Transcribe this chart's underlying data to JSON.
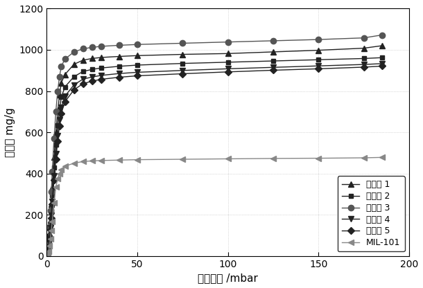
{
  "title": "",
  "xlabel": "吸附压力 /mbar",
  "ylabel": "吸附量 mg/g",
  "xlim": [
    0,
    200
  ],
  "ylim": [
    0,
    1200
  ],
  "xticks": [
    0,
    50,
    100,
    150,
    200
  ],
  "yticks": [
    0,
    200,
    400,
    600,
    800,
    1000,
    1200
  ],
  "series": [
    {
      "label": "实施例 1",
      "marker": "^",
      "color": "#222222",
      "x": [
        0,
        0.5,
        1,
        1.5,
        2,
        2.5,
        3,
        4,
        5,
        6,
        7,
        8,
        10,
        15,
        20,
        25,
        30,
        40,
        50,
        75,
        100,
        125,
        150,
        175,
        185
      ],
      "y": [
        0,
        20,
        55,
        110,
        175,
        250,
        330,
        480,
        600,
        700,
        780,
        840,
        880,
        930,
        950,
        958,
        963,
        968,
        972,
        978,
        982,
        990,
        998,
        1008,
        1020
      ]
    },
    {
      "label": "实施例 2",
      "marker": "s",
      "color": "#222222",
      "x": [
        0,
        0.5,
        1,
        1.5,
        2,
        2.5,
        3,
        4,
        5,
        6,
        7,
        8,
        10,
        15,
        20,
        25,
        30,
        40,
        50,
        75,
        100,
        125,
        150,
        175,
        185
      ],
      "y": [
        0,
        18,
        48,
        95,
        155,
        220,
        295,
        430,
        540,
        635,
        710,
        770,
        820,
        870,
        895,
        905,
        912,
        920,
        926,
        934,
        940,
        946,
        952,
        958,
        962
      ]
    },
    {
      "label": "实施例 3",
      "marker": "o",
      "color": "#555555",
      "x": [
        0,
        0.5,
        1,
        1.5,
        2,
        2.5,
        3,
        4,
        5,
        6,
        7,
        8,
        10,
        15,
        20,
        25,
        30,
        40,
        50,
        75,
        100,
        125,
        150,
        175,
        185
      ],
      "y": [
        0,
        25,
        70,
        140,
        220,
        310,
        410,
        570,
        700,
        800,
        870,
        920,
        955,
        990,
        1005,
        1012,
        1017,
        1022,
        1026,
        1032,
        1038,
        1044,
        1050,
        1058,
        1072
      ]
    },
    {
      "label": "实施例 4",
      "marker": "v",
      "color": "#222222",
      "x": [
        0,
        0.5,
        1,
        1.5,
        2,
        2.5,
        3,
        4,
        5,
        6,
        7,
        8,
        10,
        15,
        20,
        25,
        30,
        40,
        50,
        75,
        100,
        125,
        150,
        175,
        185
      ],
      "y": [
        0,
        16,
        42,
        85,
        138,
        198,
        265,
        390,
        495,
        585,
        660,
        720,
        775,
        830,
        858,
        868,
        876,
        885,
        891,
        900,
        908,
        915,
        922,
        929,
        933
      ]
    },
    {
      "label": "实施例 5",
      "marker": "D",
      "color": "#222222",
      "x": [
        0,
        0.5,
        1,
        1.5,
        2,
        2.5,
        3,
        4,
        5,
        6,
        7,
        8,
        10,
        15,
        20,
        25,
        30,
        40,
        50,
        75,
        100,
        125,
        150,
        175,
        185
      ],
      "y": [
        0,
        14,
        38,
        78,
        128,
        185,
        250,
        368,
        470,
        558,
        632,
        692,
        748,
        806,
        836,
        848,
        857,
        867,
        874,
        884,
        893,
        901,
        908,
        916,
        921
      ]
    },
    {
      "label": "MIL-101",
      "marker": "<",
      "color": "#888888",
      "x": [
        0,
        0.5,
        1,
        1.5,
        2,
        2.5,
        3,
        4,
        5,
        6,
        7,
        8,
        10,
        15,
        20,
        25,
        30,
        40,
        50,
        75,
        100,
        125,
        150,
        175,
        185
      ],
      "y": [
        0,
        8,
        22,
        48,
        82,
        122,
        168,
        258,
        335,
        375,
        400,
        418,
        435,
        450,
        458,
        461,
        463,
        465,
        467,
        469,
        471,
        473,
        474,
        476,
        478
      ]
    }
  ],
  "background_color": "#ffffff",
  "dot_grid_color": "#bbbbbb",
  "legend_fontsize": 9,
  "axis_label_fontsize": 11,
  "tick_fontsize": 10
}
